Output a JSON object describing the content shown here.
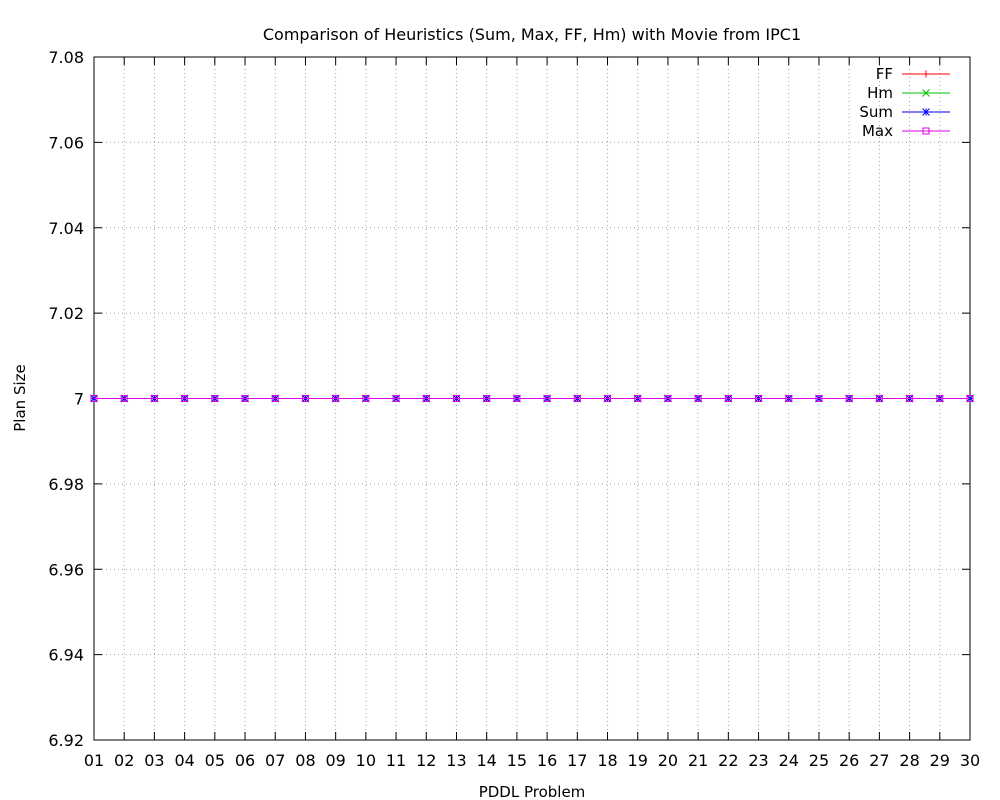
{
  "chart_data": {
    "type": "line",
    "title": "Comparison of Heuristics (Sum, Max, FF, Hm) with Movie from IPC1",
    "xlabel": "PDDL Problem",
    "ylabel": "Plan Size",
    "categories": [
      "01",
      "02",
      "03",
      "04",
      "05",
      "06",
      "07",
      "08",
      "09",
      "10",
      "11",
      "12",
      "13",
      "14",
      "15",
      "16",
      "17",
      "18",
      "19",
      "20",
      "21",
      "22",
      "23",
      "24",
      "25",
      "26",
      "27",
      "28",
      "29",
      "30"
    ],
    "ylim": [
      6.92,
      7.08
    ],
    "yticks": [
      "6.92",
      "6.94",
      "6.96",
      "6.98",
      "7",
      "7.02",
      "7.04",
      "7.06",
      "7.08"
    ],
    "grid": true,
    "legend_position": "top-right",
    "series": [
      {
        "name": "FF",
        "color": "#ff0000",
        "marker": "plus",
        "values": [
          7,
          7,
          7,
          7,
          7,
          7,
          7,
          7,
          7,
          7,
          7,
          7,
          7,
          7,
          7,
          7,
          7,
          7,
          7,
          7,
          7,
          7,
          7,
          7,
          7,
          7,
          7,
          7,
          7,
          7
        ]
      },
      {
        "name": "Hm",
        "color": "#00c000",
        "marker": "cross",
        "values": [
          7,
          7,
          7,
          7,
          7,
          7,
          7,
          7,
          7,
          7,
          7,
          7,
          7,
          7,
          7,
          7,
          7,
          7,
          7,
          7,
          7,
          7,
          7,
          7,
          7,
          7,
          7,
          7,
          7,
          7
        ]
      },
      {
        "name": "Sum",
        "color": "#0000ff",
        "marker": "star",
        "values": [
          7,
          7,
          7,
          7,
          7,
          7,
          7,
          7,
          7,
          7,
          7,
          7,
          7,
          7,
          7,
          7,
          7,
          7,
          7,
          7,
          7,
          7,
          7,
          7,
          7,
          7,
          7,
          7,
          7,
          7
        ]
      },
      {
        "name": "Max",
        "color": "#e000e0",
        "marker": "square",
        "values": [
          7,
          7,
          7,
          7,
          7,
          7,
          7,
          7,
          7,
          7,
          7,
          7,
          7,
          7,
          7,
          7,
          7,
          7,
          7,
          7,
          7,
          7,
          7,
          7,
          7,
          7,
          7,
          7,
          7,
          7
        ]
      }
    ]
  }
}
